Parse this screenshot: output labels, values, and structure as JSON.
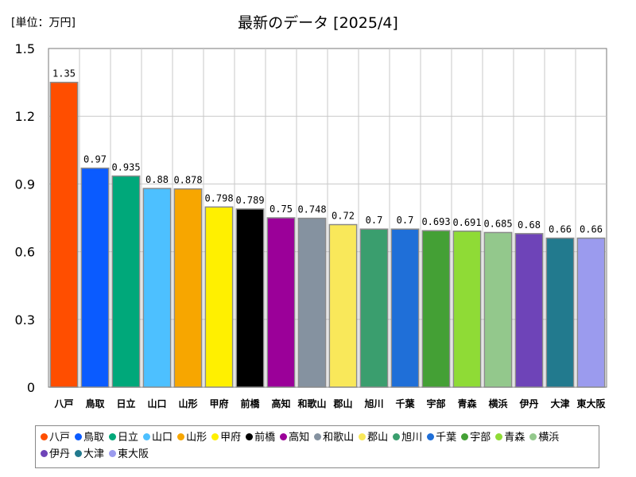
{
  "header": {
    "unit_label": "[単位：万円]",
    "title": "最新のデータ [2025/4]"
  },
  "chart_data": {
    "type": "bar",
    "title": "最新のデータ [2025/4]",
    "unit": "[単位：万円]",
    "xlabel": "",
    "ylabel": "",
    "ylim": [
      0,
      1.5
    ],
    "yticks": [
      "0",
      "0.3",
      "0.6",
      "0.9",
      "1.2",
      "1.5"
    ],
    "ytick_values": [
      0,
      0.3,
      0.6,
      0.9,
      1.2,
      1.5
    ],
    "grid": true,
    "legend_position": "bottom",
    "categories": [
      "八戸",
      "鳥取",
      "日立",
      "山口",
      "山形",
      "甲府",
      "前橋",
      "高知",
      "和歌山",
      "郡山",
      "旭川",
      "千葉",
      "宇部",
      "青森",
      "横浜",
      "伊丹",
      "大津",
      "東大阪"
    ],
    "values": [
      1.35,
      0.97,
      0.935,
      0.88,
      0.878,
      0.798,
      0.789,
      0.75,
      0.748,
      0.72,
      0.7,
      0.7,
      0.693,
      0.691,
      0.685,
      0.68,
      0.66,
      0.66
    ],
    "value_labels": [
      "1.35",
      "0.97",
      "0.935",
      "0.88",
      "0.878",
      "0.798",
      "0.789",
      "0.75",
      "0.748",
      "0.72",
      "0.7",
      "0.7",
      "0.693",
      "0.691",
      "0.685",
      "0.68",
      "0.66",
      "0.66"
    ],
    "colors": [
      "#ff4e00",
      "#0a5bff",
      "#00a87a",
      "#4dc0ff",
      "#f7a600",
      "#fff000",
      "#000000",
      "#9b0099",
      "#8592a0",
      "#f9e85a",
      "#3a9e6e",
      "#1f6fd8",
      "#44a035",
      "#8fdb36",
      "#93c88c",
      "#6e44b8",
      "#227a8e",
      "#9b9bee"
    ]
  }
}
